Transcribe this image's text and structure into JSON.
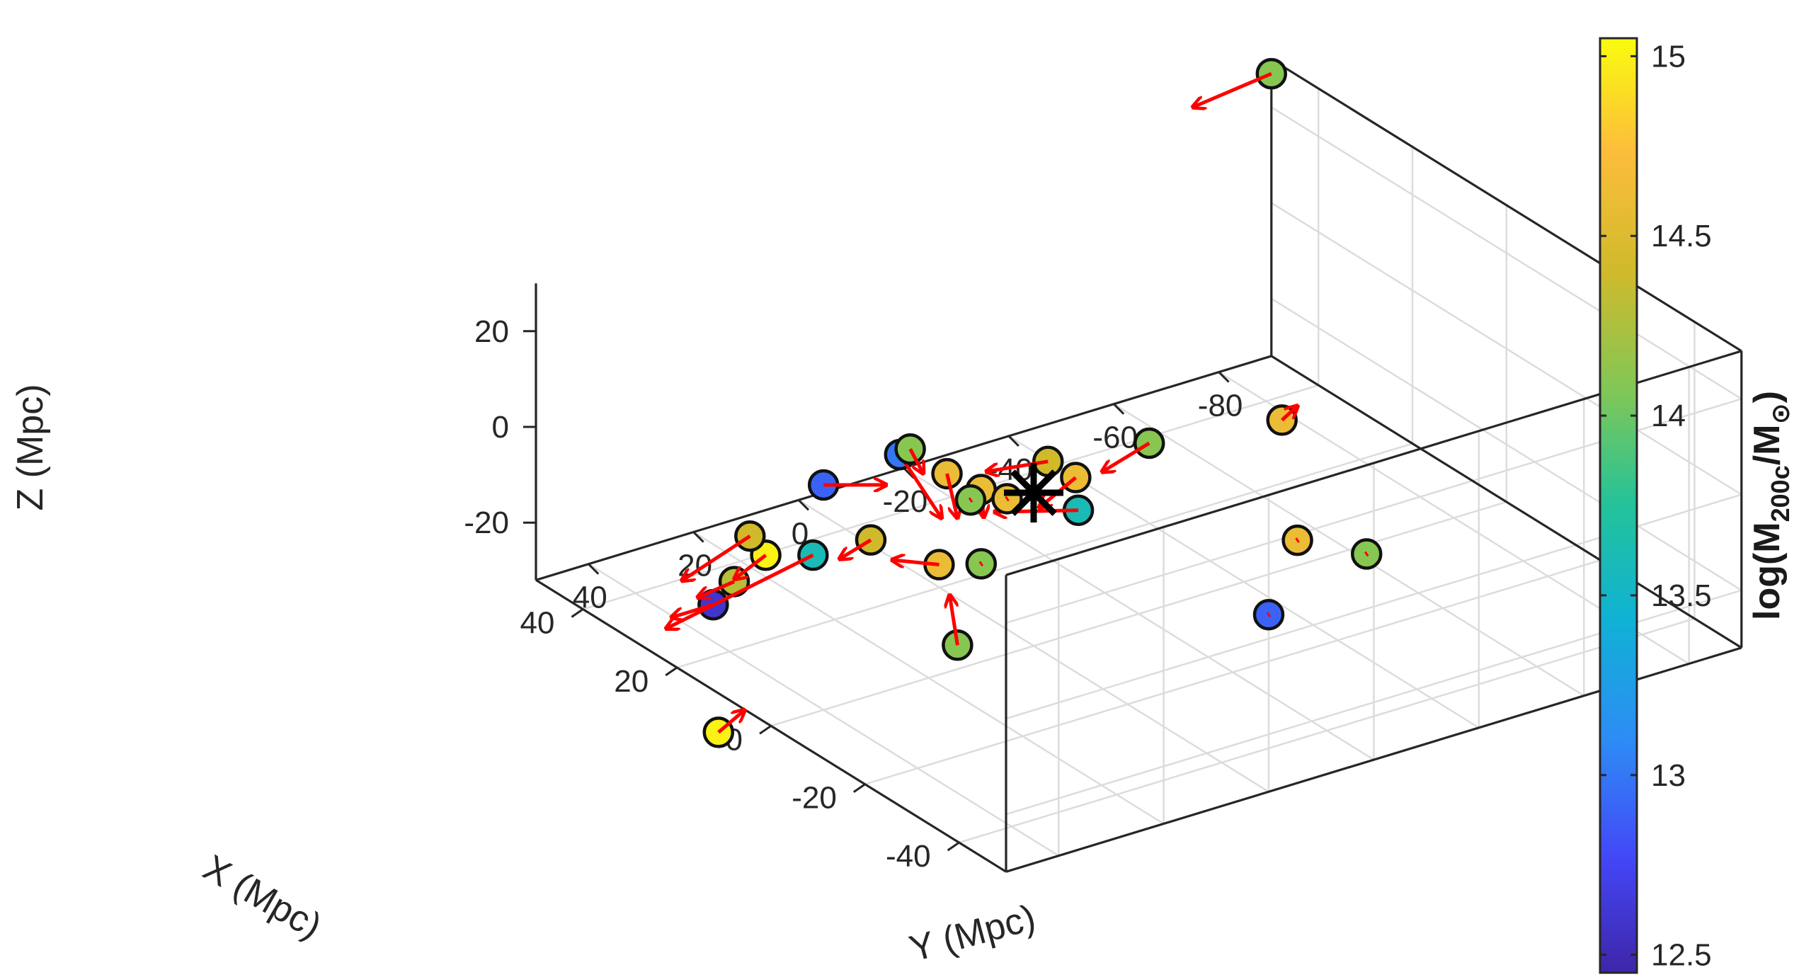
{
  "chart_data": {
    "type": "scatter3d-quiver",
    "title": "",
    "xlabel": "X (Mpc)",
    "ylabel": "Y (Mpc)",
    "zlabel": "Z (Mpc)",
    "xlim": [
      -50,
      50
    ],
    "ylim": [
      -90,
      50
    ],
    "zlim": [
      -32,
      30
    ],
    "xticks": [
      {
        "v": 40,
        "label": "40"
      },
      {
        "v": 20,
        "label": "20"
      },
      {
        "v": 0,
        "label": "0"
      },
      {
        "v": -20,
        "label": "-20"
      },
      {
        "v": -40,
        "label": "-40"
      }
    ],
    "yticks": [
      {
        "v": 40,
        "label": "40"
      },
      {
        "v": 20,
        "label": "20"
      },
      {
        "v": 0,
        "label": "0"
      },
      {
        "v": -20,
        "label": "-20"
      },
      {
        "v": -40,
        "label": "-40"
      },
      {
        "v": -60,
        "label": "-60"
      },
      {
        "v": -80,
        "label": "-80"
      }
    ],
    "zticks": [
      {
        "v": 20,
        "label": "20"
      },
      {
        "v": 0,
        "label": "0"
      },
      {
        "v": -20,
        "label": "-20"
      }
    ],
    "colorbar": {
      "label_main": "log(M",
      "label_sub": "200c",
      "label_mid": "/M",
      "label_sun": "⊙",
      "label_end": ")",
      "min": 12.45,
      "max": 15.05,
      "ticks": [
        {
          "v": 15,
          "label": "15"
        },
        {
          "v": 14.5,
          "label": "14.5"
        },
        {
          "v": 14,
          "label": "14"
        },
        {
          "v": 13.5,
          "label": "13.5"
        },
        {
          "v": 13,
          "label": "13"
        },
        {
          "v": 12.5,
          "label": "12.5"
        }
      ]
    },
    "center_marker": {
      "x": 0,
      "y": 0,
      "z": 0,
      "symbol": "*"
    },
    "halos": [
      {
        "x": 0.0,
        "y": 40.0,
        "z": 15.0,
        "dx": 0.0,
        "dy": -12.0,
        "dz": -4.0,
        "mass": 12.9
      },
      {
        "x": 0.0,
        "y": 25.5,
        "z": 16.5,
        "dx": 0.0,
        "dy": -8.0,
        "dz": -16.0,
        "mass": 13.0
      },
      {
        "x": 0.0,
        "y": 23.5,
        "z": 17.0,
        "dx": 0.0,
        "dy": -2.5,
        "dz": -6.0,
        "mass": 14.1
      },
      {
        "x": 0.0,
        "y": 16.5,
        "z": 9.5,
        "dx": 0.0,
        "dy": -2.0,
        "dz": -10.0,
        "mass": 14.6
      },
      {
        "x": 0.0,
        "y": 10.0,
        "z": 4.0,
        "dx": 0.0,
        "dy": -0.5,
        "dz": -6.0,
        "mass": 14.6
      },
      {
        "x": 0.0,
        "y": 12.0,
        "z": 2.5,
        "dx": 0.0,
        "dy": 0.0,
        "dz": 0.0,
        "mass": 14.1
      },
      {
        "x": 0.0,
        "y": 61.0,
        "z": -3.0,
        "dx": 0.0,
        "dy": 8.0,
        "dz": 0.0,
        "mass": 12.6
      },
      {
        "x": 0.0,
        "y": 57.0,
        "z": 0.5,
        "dx": 0.0,
        "dy": 7.0,
        "dz": -1.0,
        "mass": 14.3
      },
      {
        "x": 0.0,
        "y": 51.0,
        "z": 4.0,
        "dx": 0.0,
        "dy": 6.0,
        "dz": -3.0,
        "mass": 15.0
      },
      {
        "x": 0.0,
        "y": 42.0,
        "z": 1.0,
        "dx": 0.0,
        "dy": 28.0,
        "dz": -6.0,
        "mass": 13.6
      },
      {
        "x": 0.0,
        "y": 54.0,
        "z": 9.0,
        "dx": 0.0,
        "dy": 13.0,
        "dz": -5.0,
        "mass": 14.4
      },
      {
        "x": 0.0,
        "y": 31.0,
        "z": 0.5,
        "dx": 0.0,
        "dy": 6.0,
        "dz": -2.0,
        "mass": 14.4
      },
      {
        "x": 0.0,
        "y": 18.0,
        "z": -9.0,
        "dx": 0.0,
        "dy": 9.0,
        "dz": 4.0,
        "mass": 14.6
      },
      {
        "x": 0.0,
        "y": 10.0,
        "z": -11.5,
        "dx": 0.0,
        "dy": 0.0,
        "dz": 0.0,
        "mass": 14.1
      },
      {
        "x": 0.0,
        "y": -8.5,
        "z": -6.5,
        "dx": 0.0,
        "dy": 16.0,
        "dz": 5.0,
        "mass": 13.6
      },
      {
        "x": 0.0,
        "y": -8.0,
        "z": 0.5,
        "dx": 0.0,
        "dy": 7.0,
        "dz": -4.0,
        "mass": 14.6
      },
      {
        "x": 0.0,
        "y": -22.0,
        "z": 3.0,
        "dx": 0.0,
        "dy": 9.0,
        "dz": -3.0,
        "mass": 14.1
      },
      {
        "x": 0.0,
        "y": 14.5,
        "z": -27.0,
        "dx": 0.0,
        "dy": 1.5,
        "dz": 11.0,
        "mass": 14.1
      },
      {
        "x": 0.0,
        "y": 60.0,
        "z": -30.0,
        "dx": 0.0,
        "dy": -5.0,
        "dz": 3.0,
        "mass": 15.0
      },
      {
        "x": -36.0,
        "y": -18.0,
        "z": 6.0,
        "dx": 0.0,
        "dy": 0.0,
        "dz": 0.0,
        "mass": 14.6
      },
      {
        "x": -44.0,
        "y": -24.0,
        "z": 6.0,
        "dx": 0.0,
        "dy": 0.0,
        "dz": 0.0,
        "mass": 14.1
      },
      {
        "x": -26.0,
        "y": -24.0,
        "z": 23.0,
        "dx": 0.0,
        "dy": -3.0,
        "dz": 2.0,
        "mass": 14.6
      },
      {
        "x": 26.0,
        "y": -26.0,
        "z": -18.0,
        "dx": 2.0,
        "dy": 10.0,
        "dz": 0.0,
        "mass": 14.4
      },
      {
        "x": 28.0,
        "y": -20.0,
        "z": -25.0,
        "dx": 0.0,
        "dy": 0.0,
        "dz": 0.0,
        "mass": 14.6
      },
      {
        "x": -50.0,
        "y": 0.0,
        "z": 5.0,
        "dx": 0.0,
        "dy": 0.0,
        "dz": 0.0,
        "mass": 12.9
      },
      {
        "x": 50.0,
        "y": -90.0,
        "z": 27.0,
        "dx": 0.0,
        "dy": 15.0,
        "dz": -2.0,
        "mass": 14.1
      }
    ]
  }
}
